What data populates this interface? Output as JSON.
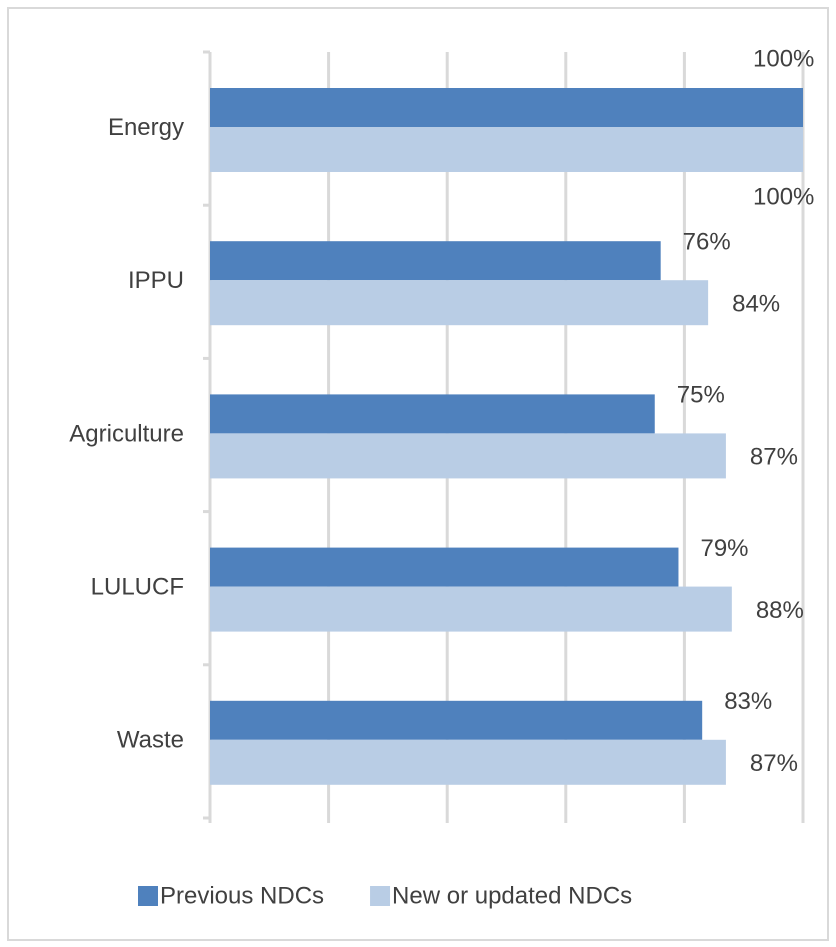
{
  "chart_data": {
    "type": "barh",
    "categories": [
      "Energy",
      "IPPU",
      "Agriculture",
      "LULUCF",
      "Waste"
    ],
    "series": [
      {
        "name": "Previous NDCs",
        "color": "#4f81bd",
        "values": [
          100,
          76,
          75,
          79,
          83
        ],
        "value_labels": [
          "100%",
          "76%",
          "75%",
          "79%",
          "83%"
        ]
      },
      {
        "name": "New or updated NDCs",
        "color": "#b9cde5",
        "values": [
          100,
          84,
          87,
          88,
          87
        ],
        "value_labels": [
          "100%",
          "84%",
          "87%",
          "88%",
          "87%"
        ]
      }
    ],
    "xlim": [
      0,
      100
    ],
    "xticks": [
      0,
      20,
      40,
      60,
      80,
      100
    ],
    "grid": true,
    "legend": "bottom"
  }
}
